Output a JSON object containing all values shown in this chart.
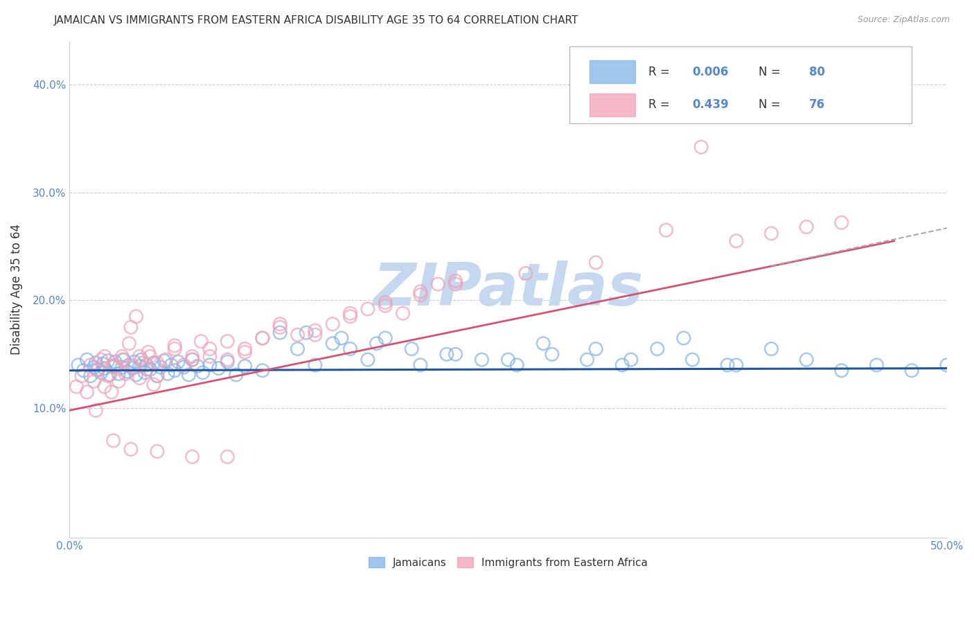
{
  "title": "JAMAICAN VS IMMIGRANTS FROM EASTERN AFRICA DISABILITY AGE 35 TO 64 CORRELATION CHART",
  "source_text": "Source: ZipAtlas.com",
  "ylabel": "Disability Age 35 to 64",
  "y_ticks": [
    0.1,
    0.2,
    0.3,
    0.4
  ],
  "xlim": [
    0.0,
    0.5
  ],
  "ylim": [
    -0.02,
    0.44
  ],
  "jamaican_color": "#82B3E8",
  "eastern_africa_color": "#F2A0B5",
  "jamaican_edge_color": "#82B3E8",
  "eastern_africa_edge_color": "#F2A0B5",
  "jamaican_line_color": "#2255A0",
  "eastern_africa_line_color": "#D95070",
  "dashed_line_color": "#AAAAAA",
  "watermark_color": "#C5D8F0",
  "background_color": "#FFFFFF",
  "grid_color": "#CCCCCC",
  "title_color": "#333333",
  "tick_color": "#5588CC",
  "legend_r_color": "#5588CC",
  "blue_trend_x": [
    0.0,
    0.5
  ],
  "blue_trend_y": [
    0.135,
    0.137
  ],
  "pink_trend_x": [
    0.0,
    0.47
  ],
  "pink_trend_y": [
    0.098,
    0.255
  ],
  "dashed_trend_x": [
    0.4,
    0.5
  ],
  "dashed_trend_y": [
    0.232,
    0.267
  ],
  "jamaican_scatter_x": [
    0.005,
    0.008,
    0.01,
    0.012,
    0.014,
    0.015,
    0.016,
    0.018,
    0.019,
    0.02,
    0.022,
    0.023,
    0.025,
    0.026,
    0.028,
    0.03,
    0.031,
    0.033,
    0.034,
    0.036,
    0.037,
    0.038,
    0.04,
    0.041,
    0.043,
    0.044,
    0.046,
    0.048,
    0.05,
    0.052,
    0.054,
    0.056,
    0.058,
    0.06,
    0.062,
    0.065,
    0.068,
    0.07,
    0.073,
    0.076,
    0.08,
    0.085,
    0.09,
    0.095,
    0.1,
    0.11,
    0.12,
    0.13,
    0.14,
    0.15,
    0.16,
    0.17,
    0.18,
    0.2,
    0.22,
    0.25,
    0.27,
    0.3,
    0.32,
    0.35,
    0.38,
    0.4,
    0.42,
    0.44,
    0.46,
    0.48,
    0.5,
    0.135,
    0.155,
    0.175,
    0.195,
    0.215,
    0.235,
    0.255,
    0.275,
    0.295,
    0.315,
    0.335,
    0.355,
    0.375
  ],
  "jamaican_scatter_y": [
    0.14,
    0.135,
    0.145,
    0.13,
    0.138,
    0.142,
    0.136,
    0.133,
    0.141,
    0.137,
    0.144,
    0.131,
    0.139,
    0.143,
    0.132,
    0.138,
    0.145,
    0.134,
    0.14,
    0.137,
    0.143,
    0.131,
    0.139,
    0.145,
    0.133,
    0.14,
    0.136,
    0.142,
    0.13,
    0.138,
    0.144,
    0.132,
    0.14,
    0.135,
    0.143,
    0.138,
    0.131,
    0.145,
    0.139,
    0.133,
    0.14,
    0.137,
    0.143,
    0.131,
    0.139,
    0.135,
    0.17,
    0.155,
    0.14,
    0.16,
    0.155,
    0.145,
    0.165,
    0.14,
    0.15,
    0.145,
    0.16,
    0.155,
    0.145,
    0.165,
    0.14,
    0.155,
    0.145,
    0.135,
    0.14,
    0.135,
    0.14,
    0.17,
    0.165,
    0.16,
    0.155,
    0.15,
    0.145,
    0.14,
    0.15,
    0.145,
    0.14,
    0.155,
    0.145,
    0.14
  ],
  "eastern_scatter_x": [
    0.004,
    0.007,
    0.01,
    0.012,
    0.014,
    0.016,
    0.018,
    0.02,
    0.022,
    0.024,
    0.026,
    0.028,
    0.03,
    0.032,
    0.034,
    0.036,
    0.038,
    0.04,
    0.042,
    0.044,
    0.046,
    0.048,
    0.05,
    0.055,
    0.06,
    0.065,
    0.07,
    0.075,
    0.08,
    0.09,
    0.1,
    0.11,
    0.12,
    0.13,
    0.14,
    0.15,
    0.16,
    0.17,
    0.18,
    0.19,
    0.2,
    0.21,
    0.22,
    0.02,
    0.025,
    0.03,
    0.035,
    0.04,
    0.045,
    0.05,
    0.06,
    0.07,
    0.08,
    0.09,
    0.1,
    0.11,
    0.12,
    0.14,
    0.16,
    0.18,
    0.2,
    0.22,
    0.26,
    0.3,
    0.34,
    0.36,
    0.38,
    0.4,
    0.42,
    0.44,
    0.015,
    0.025,
    0.035,
    0.05,
    0.07,
    0.09
  ],
  "eastern_scatter_y": [
    0.12,
    0.13,
    0.115,
    0.14,
    0.125,
    0.135,
    0.145,
    0.12,
    0.13,
    0.115,
    0.14,
    0.125,
    0.148,
    0.132,
    0.16,
    0.138,
    0.185,
    0.128,
    0.142,
    0.136,
    0.148,
    0.122,
    0.13,
    0.145,
    0.155,
    0.14,
    0.148,
    0.162,
    0.155,
    0.145,
    0.152,
    0.165,
    0.175,
    0.168,
    0.172,
    0.178,
    0.188,
    0.192,
    0.198,
    0.188,
    0.205,
    0.215,
    0.218,
    0.148,
    0.138,
    0.145,
    0.175,
    0.148,
    0.152,
    0.142,
    0.158,
    0.145,
    0.148,
    0.162,
    0.155,
    0.165,
    0.178,
    0.168,
    0.185,
    0.195,
    0.208,
    0.215,
    0.225,
    0.235,
    0.265,
    0.342,
    0.255,
    0.262,
    0.268,
    0.272,
    0.098,
    0.07,
    0.062,
    0.06,
    0.055,
    0.055
  ]
}
